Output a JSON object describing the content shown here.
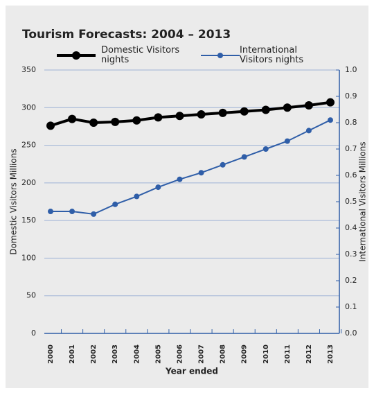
{
  "chart_data": {
    "type": "line",
    "title": "Tourism Forecasts: 2004 – 2013",
    "x_label": "Year ended",
    "y_label": "Domestic Visitors Millions",
    "y2_label": "International Visitors Millions",
    "categories": [
      "2000",
      "2001",
      "2002",
      "2003",
      "2004",
      "2005",
      "2006",
      "2007",
      "2008",
      "2009",
      "2010",
      "2011",
      "2012",
      "2013"
    ],
    "series": [
      {
        "name": "Domestic Visitors nights",
        "color": "#000000",
        "values": [
          276,
          285,
          280,
          281,
          283,
          287,
          289,
          291,
          293,
          295,
          297,
          300,
          303,
          307
        ]
      },
      {
        "name": "International Visitors nights",
        "color": "#2f5ea8",
        "axis": "y2",
        "values": [
          0.463,
          0.463,
          0.453,
          0.49,
          0.52,
          0.555,
          0.585,
          0.61,
          0.64,
          0.67,
          0.7,
          0.73,
          0.77,
          0.81
        ]
      }
    ],
    "ylim": [
      0,
      350
    ],
    "yticks": [
      0,
      50,
      100,
      150,
      200,
      250,
      300,
      350
    ],
    "y2lim": [
      0,
      1
    ],
    "y2ticks": [
      {
        "value": 0,
        "label": "0.0"
      },
      0.1,
      0.2,
      0.3,
      0.4,
      0.5,
      0.6,
      0.7,
      0.8,
      0.9,
      {
        "value": 1,
        "label": "1.0"
      }
    ],
    "grid": true
  }
}
